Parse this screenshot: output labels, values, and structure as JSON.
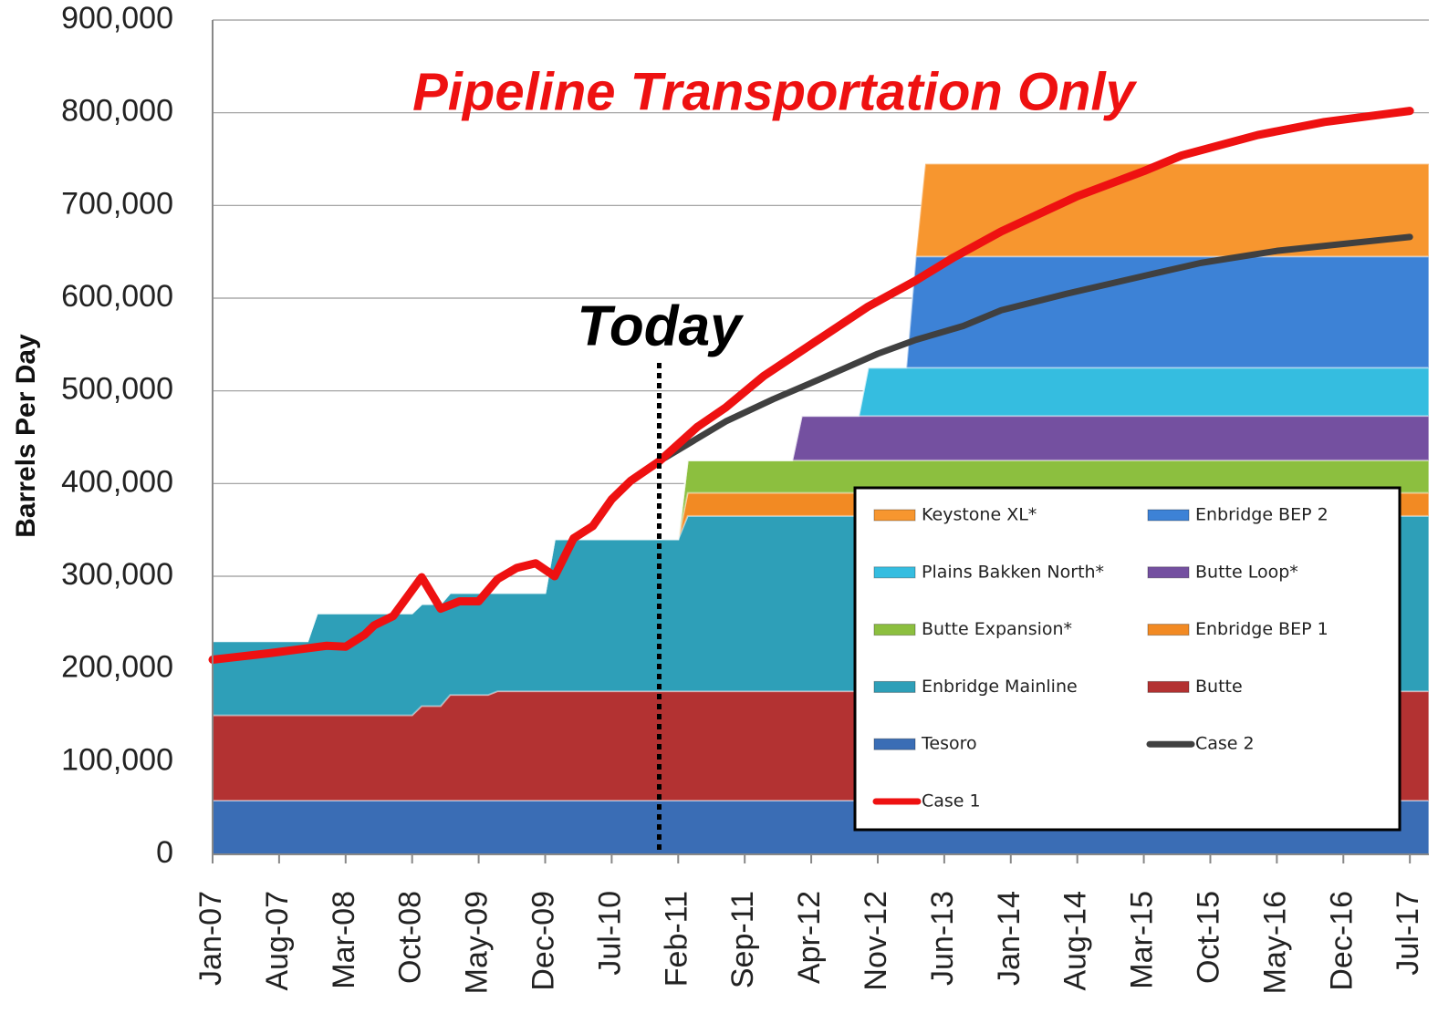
{
  "chart_data": {
    "type": "area",
    "title": "Pipeline Transportation Only",
    "y_label": "Barrels Per Day",
    "annotations": [
      {
        "text": "Today",
        "x": "Dec-10"
      }
    ],
    "xlim": [
      "Jan-07",
      "Sep-17"
    ],
    "xticks": [
      "Jan-07",
      "Aug-07",
      "Mar-08",
      "Oct-08",
      "May-09",
      "Dec-09",
      "Jul-10",
      "Feb-11",
      "Sep-11",
      "Apr-12",
      "Nov-12",
      "Jun-13",
      "Jan-14",
      "Aug-14",
      "Mar-15",
      "Oct-15",
      "May-16",
      "Dec-16",
      "Jul-17"
    ],
    "ylim": [
      0,
      900000
    ],
    "yticks": [
      0,
      {
        "value": 100000,
        "label": "100,000"
      },
      {
        "value": 200000,
        "label": "200,000"
      },
      {
        "value": 300000,
        "label": "300,000"
      },
      {
        "value": 400000,
        "label": "400,000"
      },
      {
        "value": 500000,
        "label": "500,000"
      },
      {
        "value": 600000,
        "label": "600,000"
      },
      {
        "value": 700000,
        "label": "700,000"
      },
      {
        "value": 800000,
        "label": "800,000"
      },
      {
        "value": 900000,
        "label": "900,000"
      }
    ],
    "grid": true,
    "stacked": true,
    "x": [
      "Jan-07",
      "Nov-07",
      "Dec-07",
      "Oct-08",
      "Nov-08",
      "Jan-09",
      "Feb-09",
      "Jun-09",
      "Jul-09",
      "Dec-09",
      "Jan-10",
      "Feb-11",
      "Mar-11",
      "Feb-12",
      "Mar-12",
      "Sep-12",
      "Oct-12",
      "Feb-13",
      "Mar-13",
      "Apr-13",
      "Sep-17"
    ],
    "series": [
      {
        "name": "Keystone XL*",
        "color": "#f7962f",
        "values": [
          0,
          0,
          0,
          0,
          0,
          0,
          0,
          0,
          0,
          0,
          0,
          0,
          0,
          0,
          0,
          0,
          0,
          0,
          0,
          100000,
          100000
        ]
      },
      {
        "name": "Enbridge BEP 2",
        "color": "#3d82d6",
        "values": [
          0,
          0,
          0,
          0,
          0,
          0,
          0,
          0,
          0,
          0,
          0,
          0,
          0,
          0,
          0,
          0,
          0,
          0,
          120000,
          120000,
          120000
        ]
      },
      {
        "name": "Plains Bakken North*",
        "color": "#35bde0",
        "values": [
          0,
          0,
          0,
          0,
          0,
          0,
          0,
          0,
          0,
          0,
          0,
          0,
          0,
          0,
          0,
          0,
          52000,
          52000,
          52000,
          52000,
          52000
        ]
      },
      {
        "name": "Butte Loop*",
        "color": "#7450a0",
        "values": [
          0,
          0,
          0,
          0,
          0,
          0,
          0,
          0,
          0,
          0,
          0,
          0,
          0,
          0,
          48000,
          48000,
          48000,
          48000,
          48000,
          48000,
          48000
        ]
      },
      {
        "name": "Butte Expansion*",
        "color": "#8cbf3f",
        "values": [
          0,
          0,
          0,
          0,
          0,
          0,
          0,
          0,
          0,
          0,
          0,
          0,
          35000,
          35000,
          35000,
          35000,
          35000,
          35000,
          35000,
          35000,
          35000
        ]
      },
      {
        "name": "Enbridge BEP 1",
        "color": "#f28a23",
        "values": [
          0,
          0,
          0,
          0,
          0,
          0,
          0,
          0,
          0,
          0,
          0,
          0,
          25000,
          25000,
          25000,
          25000,
          25000,
          25000,
          25000,
          25000,
          25000
        ]
      },
      {
        "name": "Enbridge Mainline",
        "color": "#2e9fb8",
        "values": [
          80000,
          80000,
          110000,
          110000,
          110000,
          110000,
          110000,
          110000,
          106000,
          106000,
          164000,
          164000,
          189000,
          189000,
          189000,
          189000,
          189000,
          189000,
          189000,
          189000,
          189000
        ]
      },
      {
        "name": "Butte",
        "color": "#b33232",
        "values": [
          92000,
          92000,
          92000,
          92000,
          102000,
          102000,
          114000,
          114000,
          118000,
          118000,
          118000,
          118000,
          118000,
          118000,
          118000,
          118000,
          118000,
          118000,
          118000,
          118000,
          118000
        ]
      },
      {
        "name": "Tesoro",
        "color": "#3a6db5",
        "values": [
          58000,
          58000,
          58000,
          58000,
          58000,
          58000,
          58000,
          58000,
          58000,
          58000,
          58000,
          58000,
          58000,
          58000,
          58000,
          58000,
          58000,
          58000,
          58000,
          58000,
          58000
        ]
      },
      {
        "name": "Case 2",
        "color": "#404040",
        "type": "line",
        "x": [
          "Dec-10",
          "Jul-11",
          "Dec-11",
          "May-12",
          "Nov-12",
          "Mar-13",
          "Aug-13",
          "Dec-13",
          "Jul-14",
          "Mar-15",
          "Sep-15",
          "May-16",
          "Jul-17"
        ],
        "values": [
          424000,
          467000,
          491000,
          513000,
          540000,
          555000,
          570000,
          587000,
          605000,
          624000,
          638000,
          651000,
          666000
        ]
      },
      {
        "name": "Case 1",
        "color": "#ee1111",
        "type": "line",
        "x": [
          "Jan-07",
          "Jul-07",
          "Oct-07",
          "Jan-08",
          "Mar-08",
          "May-08",
          "Jun-08",
          "Aug-08",
          "Nov-08",
          "Jan-09",
          "Mar-09",
          "May-09",
          "Jul-09",
          "Sep-09",
          "Nov-09",
          "Jan-10",
          "Mar-10",
          "May-10",
          "Jul-10",
          "Sep-10",
          "Dec-10",
          "Apr-11",
          "Jul-11",
          "Nov-11",
          "May-12",
          "Oct-12",
          "Mar-13",
          "Jul-13",
          "Dec-13",
          "Aug-14",
          "Mar-15",
          "Jul-15",
          "Mar-16",
          "Oct-16",
          "Jul-17"
        ],
        "values": [
          210000,
          217000,
          221000,
          225000,
          224000,
          237000,
          247000,
          257000,
          299000,
          265000,
          273000,
          273000,
          297000,
          309000,
          314000,
          300000,
          341000,
          354000,
          383000,
          403000,
          424000,
          461000,
          482000,
          516000,
          557000,
          591000,
          619000,
          644000,
          672000,
          710000,
          737000,
          754000,
          776000,
          790000,
          802000
        ]
      }
    ]
  }
}
